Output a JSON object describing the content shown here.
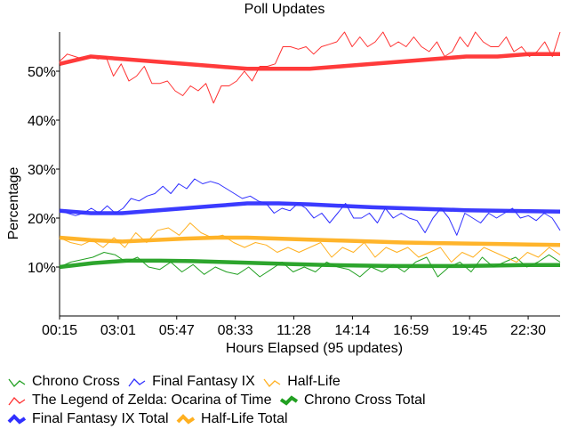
{
  "chart_data": {
    "type": "line",
    "title": "Poll Updates",
    "xlabel": "Hours Elapsed (95 updates)",
    "ylabel": "Percentage",
    "x_tick_labels": [
      "00:15",
      "03:01",
      "05:47",
      "08:33",
      "11:28",
      "14:14",
      "16:59",
      "19:45",
      "22:30"
    ],
    "x_tick_every_updates": 11,
    "x_range": [
      0,
      94
    ],
    "y_ticks": [
      10,
      20,
      30,
      40,
      50
    ],
    "y_tick_labels": [
      "10%",
      "20%",
      "30%",
      "40%",
      "50%"
    ],
    "ylim": [
      0,
      58
    ],
    "grid": false,
    "legend_position": "bottom-left",
    "series": [
      {
        "name": "Chrono Cross",
        "color": "#22a022",
        "style": "thin",
        "values": [
          10,
          11,
          11.5,
          12,
          13,
          12.5,
          11,
          12,
          10,
          9.5,
          11,
          9,
          10.5,
          8.5,
          10,
          9,
          8.5,
          10,
          8,
          9.5,
          11,
          9,
          10,
          9,
          11,
          10,
          9.5,
          8,
          10,
          9,
          10.5,
          9,
          11,
          12,
          8,
          10,
          11,
          9,
          12,
          10,
          11,
          12,
          10,
          11,
          12.5,
          11
        ]
      },
      {
        "name": "Final Fantasy IX",
        "color": "#3030ff",
        "style": "thin",
        "values": [
          21.5,
          21,
          20.5,
          21,
          22,
          21,
          22.5,
          21,
          22,
          24,
          23.5,
          24.5,
          25,
          26.5,
          25,
          27,
          26,
          28,
          27,
          27.5,
          27,
          26,
          25,
          24,
          24.5,
          23.5,
          23,
          21,
          22,
          21.5,
          23,
          22,
          20,
          21,
          19,
          21,
          23,
          20,
          20,
          21,
          19,
          22,
          20,
          21,
          20,
          19.5,
          17,
          20,
          22,
          20,
          16.5,
          21,
          20,
          19,
          21,
          20,
          21,
          22,
          20,
          20.5,
          19.5,
          21,
          20,
          17.5
        ]
      },
      {
        "name": "Half-Life",
        "color": "#ffb020",
        "style": "thin",
        "values": [
          16,
          15,
          14.5,
          15.5,
          14,
          16,
          14,
          17,
          15,
          17.5,
          18,
          16.5,
          19,
          17,
          16,
          16.5,
          15,
          14,
          15,
          14.5,
          13,
          14,
          13,
          14,
          15,
          12,
          14,
          13,
          15,
          12,
          14,
          13,
          14,
          12,
          13,
          14,
          11,
          13,
          12,
          14,
          13,
          12,
          11,
          13,
          12,
          14,
          12.5
        ]
      },
      {
        "name": "The Legend of Zelda: Ocarina of Time",
        "color": "#ff3030",
        "style": "thin",
        "values": [
          52,
          53.5,
          53,
          52.5,
          53,
          52.5,
          53,
          49,
          51.5,
          48,
          49,
          51,
          47.5,
          47.5,
          48,
          46,
          45,
          47,
          46,
          47.5,
          43.5,
          47,
          47,
          48,
          50,
          48,
          51,
          51,
          51.5,
          55,
          55,
          54.5,
          55,
          53.5,
          55,
          55.5,
          56,
          58,
          55,
          57,
          55,
          56,
          58,
          55,
          56,
          55,
          57,
          55,
          54,
          56,
          53,
          54,
          57,
          55,
          58,
          56,
          55,
          55,
          57,
          54,
          55,
          53,
          54,
          56,
          53,
          58
        ]
      },
      {
        "name": "Chrono Cross Total",
        "color": "#22a022",
        "style": "thick",
        "values": [
          10,
          10.8,
          11.3,
          11.3,
          11.2,
          11,
          10.8,
          10.6,
          10.4,
          10.3,
          10.2,
          10.2,
          10.2,
          10.3,
          10.4,
          10.4
        ]
      },
      {
        "name": "Final Fantasy IX Total",
        "color": "#3030ff",
        "style": "thick",
        "values": [
          21.5,
          21,
          21,
          21.5,
          22,
          22.5,
          23,
          23,
          22.8,
          22.5,
          22.2,
          22,
          21.8,
          21.6,
          21.5,
          21.4,
          21.3
        ]
      },
      {
        "name": "Half-Life Total",
        "color": "#ffb020",
        "style": "thick",
        "values": [
          16,
          15.5,
          15.2,
          15.5,
          15.8,
          16,
          16,
          15.8,
          15.6,
          15.4,
          15.2,
          15,
          14.9,
          14.8,
          14.7,
          14.6,
          14.5
        ]
      },
      {
        "name": "The Legend of Zelda: Ocarina of Time Total",
        "color": "#ff3030",
        "style": "thick",
        "legend": false,
        "values": [
          51.5,
          53,
          52.5,
          52,
          51.5,
          51,
          50.5,
          50.5,
          50.5,
          51,
          51.5,
          52,
          52.5,
          53,
          53,
          53.5,
          53.5
        ]
      }
    ]
  },
  "legend": [
    [
      "Chrono Cross",
      "Final Fantasy IX",
      "Half-Life"
    ],
    [
      "The Legend of Zelda: Ocarina of Time",
      "Chrono Cross Total"
    ],
    [
      "Final Fantasy IX Total",
      "Half-Life Total"
    ]
  ]
}
